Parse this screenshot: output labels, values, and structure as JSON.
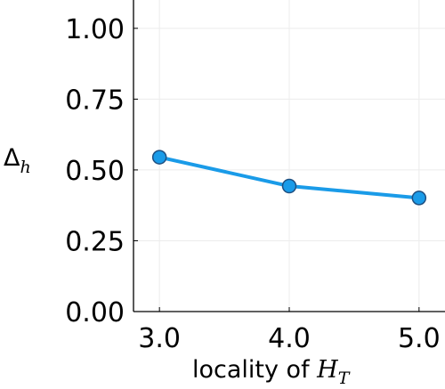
{
  "chart_data": {
    "type": "line",
    "x": [
      3.0,
      4.0,
      5.0
    ],
    "series": [
      {
        "values": [
          0.545,
          0.443,
          0.401
        ],
        "color": "#1a9be8",
        "marker_edge": "#1f4f80"
      }
    ],
    "xlim": [
      2.8,
      5.2
    ],
    "ylim": [
      0.0,
      1.1
    ],
    "xticks": [
      "3.0",
      "4.0",
      "5.0"
    ],
    "yticks": [
      "0.00",
      "0.25",
      "0.50",
      "0.75",
      "1.00"
    ],
    "xlabel": {
      "prefix": "locality of ",
      "var": "H",
      "sub": "T"
    },
    "ylabel": {
      "var": "Δ",
      "sub": "h"
    },
    "grid": true
  }
}
